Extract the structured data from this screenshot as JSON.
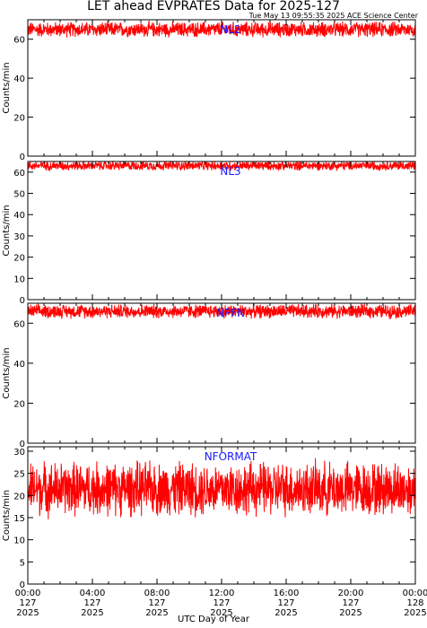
{
  "title": "LET ahead EVPRATES Data for 2025-127",
  "timestamp": "Tue May 13 09:55:35 2025 ACE Science Center",
  "xlabel": "UTC Day of Year",
  "colors": {
    "trace": "#ff0000",
    "panel_label": "#1a1aff",
    "axes": "#000000"
  },
  "x_ticks": [
    {
      "hour": 0,
      "time": "00:00",
      "doy": "127",
      "year": "2025"
    },
    {
      "hour": 4,
      "time": "04:00",
      "doy": "127",
      "year": "2025"
    },
    {
      "hour": 8,
      "time": "08:00",
      "doy": "127",
      "year": "2025"
    },
    {
      "hour": 12,
      "time": "12:00",
      "doy": "127",
      "year": "2025"
    },
    {
      "hour": 16,
      "time": "16:00",
      "doy": "127",
      "year": "2025"
    },
    {
      "hour": 20,
      "time": "20:00",
      "doy": "127",
      "year": "2025"
    },
    {
      "hour": 24,
      "time": "00:00",
      "doy": "128",
      "year": "2025"
    }
  ],
  "chart_data": [
    {
      "type": "line",
      "panel_label": "NL2",
      "ylabel": "Counts/min",
      "xlim": [
        0,
        24
      ],
      "ylim": [
        0,
        70
      ],
      "y_ticks": [
        0,
        20,
        40,
        60
      ],
      "series": [
        {
          "mean": 65,
          "spread": 4.5,
          "max": 70
        }
      ]
    },
    {
      "type": "line",
      "panel_label": "NL3",
      "ylabel": "Counts/min",
      "xlim": [
        0,
        24
      ],
      "ylim": [
        0,
        65
      ],
      "y_ticks": [
        0,
        10,
        20,
        30,
        40,
        50,
        60
      ],
      "series": [
        {
          "mean": 63,
          "spread": 2.5,
          "max": 65
        }
      ]
    },
    {
      "type": "line",
      "panel_label": "NPFN",
      "ylabel": "Counts/min",
      "xlim": [
        0,
        24
      ],
      "ylim": [
        0,
        70
      ],
      "y_ticks": [
        0,
        20,
        40,
        60
      ],
      "series": [
        {
          "mean": 66,
          "spread": 4,
          "max": 70
        }
      ]
    },
    {
      "type": "line",
      "panel_label": "NFORMAT",
      "ylabel": "Counts/min",
      "xlim": [
        0,
        24
      ],
      "ylim": [
        0,
        31
      ],
      "y_ticks": [
        0,
        5,
        10,
        15,
        20,
        25,
        30
      ],
      "series": [
        {
          "mean": 21.5,
          "spread": 7,
          "min": 14,
          "max": 30
        }
      ]
    }
  ]
}
